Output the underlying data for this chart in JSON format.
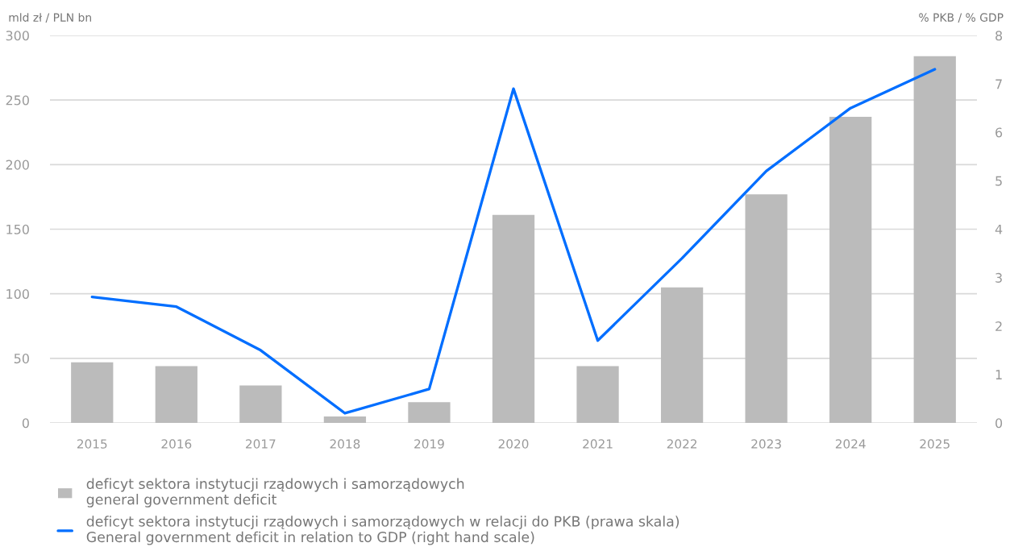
{
  "chart_data": {
    "type": "bar",
    "ylabel": "mld zł / PLN bn",
    "y2label": "% PKB / % GDP",
    "categories": [
      "2015",
      "2016",
      "2017",
      "2018",
      "2019",
      "2020",
      "2021",
      "2022",
      "2023",
      "2024",
      "2025"
    ],
    "series": [
      {
        "name": "deficyt sektora instytucji rządowych i samorządowych\ngeneral government deficit",
        "color": "#bbbbbb",
        "values": [
          47,
          44,
          29,
          5,
          16,
          161,
          44,
          105,
          177,
          237,
          284
        ]
      },
      {
        "name": "deficyt sektora instytucji rządowych i samorządowych w relacji do PKB (prawa skala)\nGeneral government deficit in relation to GDP (right hand scale)",
        "type": "line",
        "axis": "y2",
        "color": "#006eff",
        "line_style": "solid",
        "values": [
          2.6,
          2.4,
          1.5,
          0.2,
          0.7,
          6.9,
          1.7,
          3.4,
          5.2,
          6.5,
          7.3
        ]
      }
    ],
    "ylim": [
      0,
      300
    ],
    "yticks": [
      0,
      50,
      100,
      150,
      200,
      250,
      300
    ],
    "y2lim": [
      0,
      8
    ],
    "y2ticks": [
      0,
      1,
      2,
      3,
      4,
      5,
      6,
      7,
      8
    ],
    "grid": "y",
    "legend": "bottom"
  }
}
